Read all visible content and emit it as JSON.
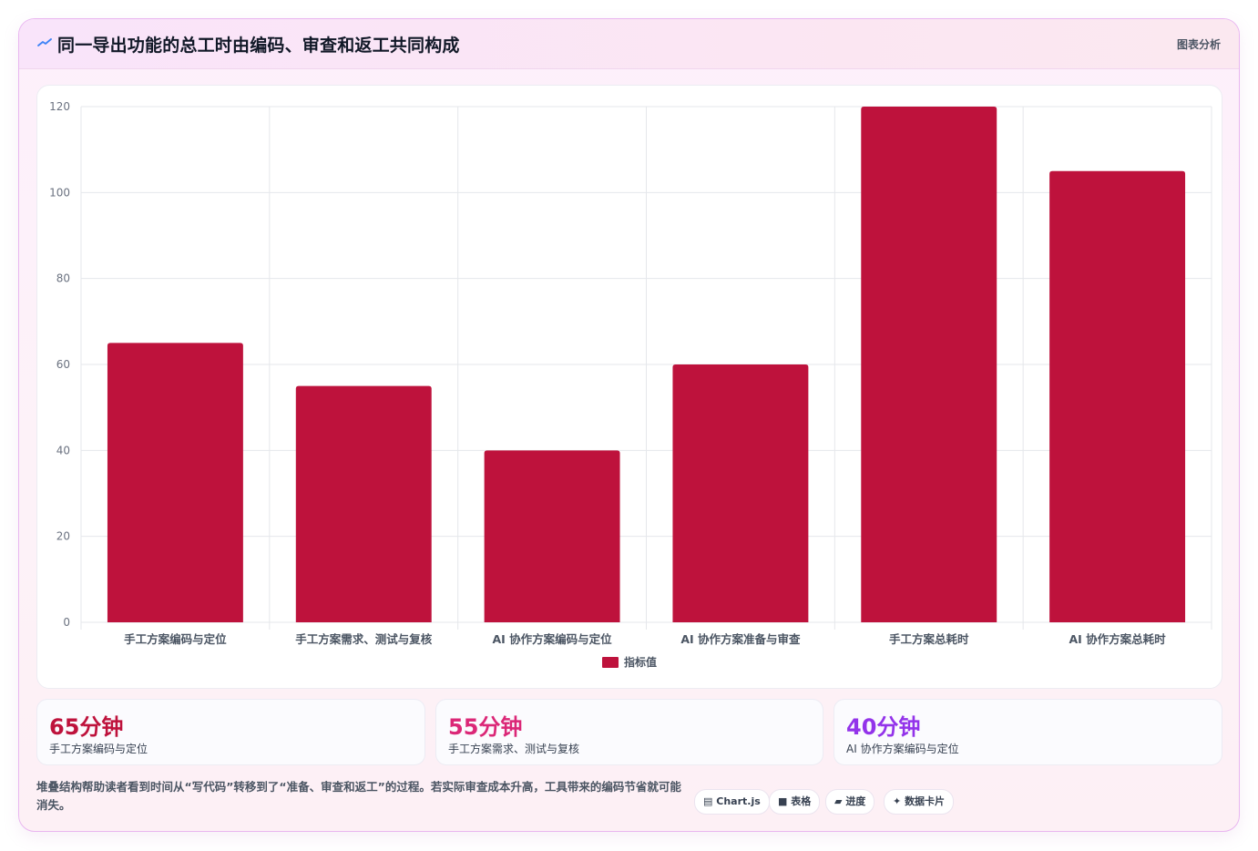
{
  "header": {
    "title": "同一导出功能的总工时由编码、审查和返工共同构成",
    "tag": "图表分析"
  },
  "chart_data": {
    "type": "bar",
    "categories": [
      "手工方案编码与定位",
      "手工方案需求、测试与复核",
      "AI 协作方案编码与定位",
      "AI 协作方案准备与审查",
      "手工方案总耗时",
      "AI 协作方案总耗时"
    ],
    "series": [
      {
        "name": "指标值",
        "values": [
          65,
          55,
          40,
          60,
          120,
          105
        ]
      }
    ],
    "ylim": [
      0,
      120
    ],
    "yticks": [
      0,
      20,
      40,
      60,
      80,
      100,
      120
    ],
    "grid": true,
    "legend": "bottom",
    "color": "#be123c"
  },
  "stats": [
    {
      "value": "65分钟",
      "label": "手工方案编码与定位",
      "color": "#be123c"
    },
    {
      "value": "55分钟",
      "label": "手工方案需求、测试与复核",
      "color": "#db2777"
    },
    {
      "value": "40分钟",
      "label": "AI 协作方案编码与定位",
      "color": "#9333ea"
    }
  ],
  "footer": {
    "text": "堆叠结构帮助读者看到时间从“写代码”转移到了“准备、审查和返工”的过程。若实际审查成本升高，工具带来的编码节省就可能消失。"
  },
  "chips": [
    {
      "icon": "▤",
      "label": "Chart.js"
    },
    {
      "icon": "■",
      "label": "表格"
    },
    {
      "icon": "▰",
      "label": "进度"
    },
    {
      "icon": "✦",
      "label": "数据卡片"
    }
  ]
}
